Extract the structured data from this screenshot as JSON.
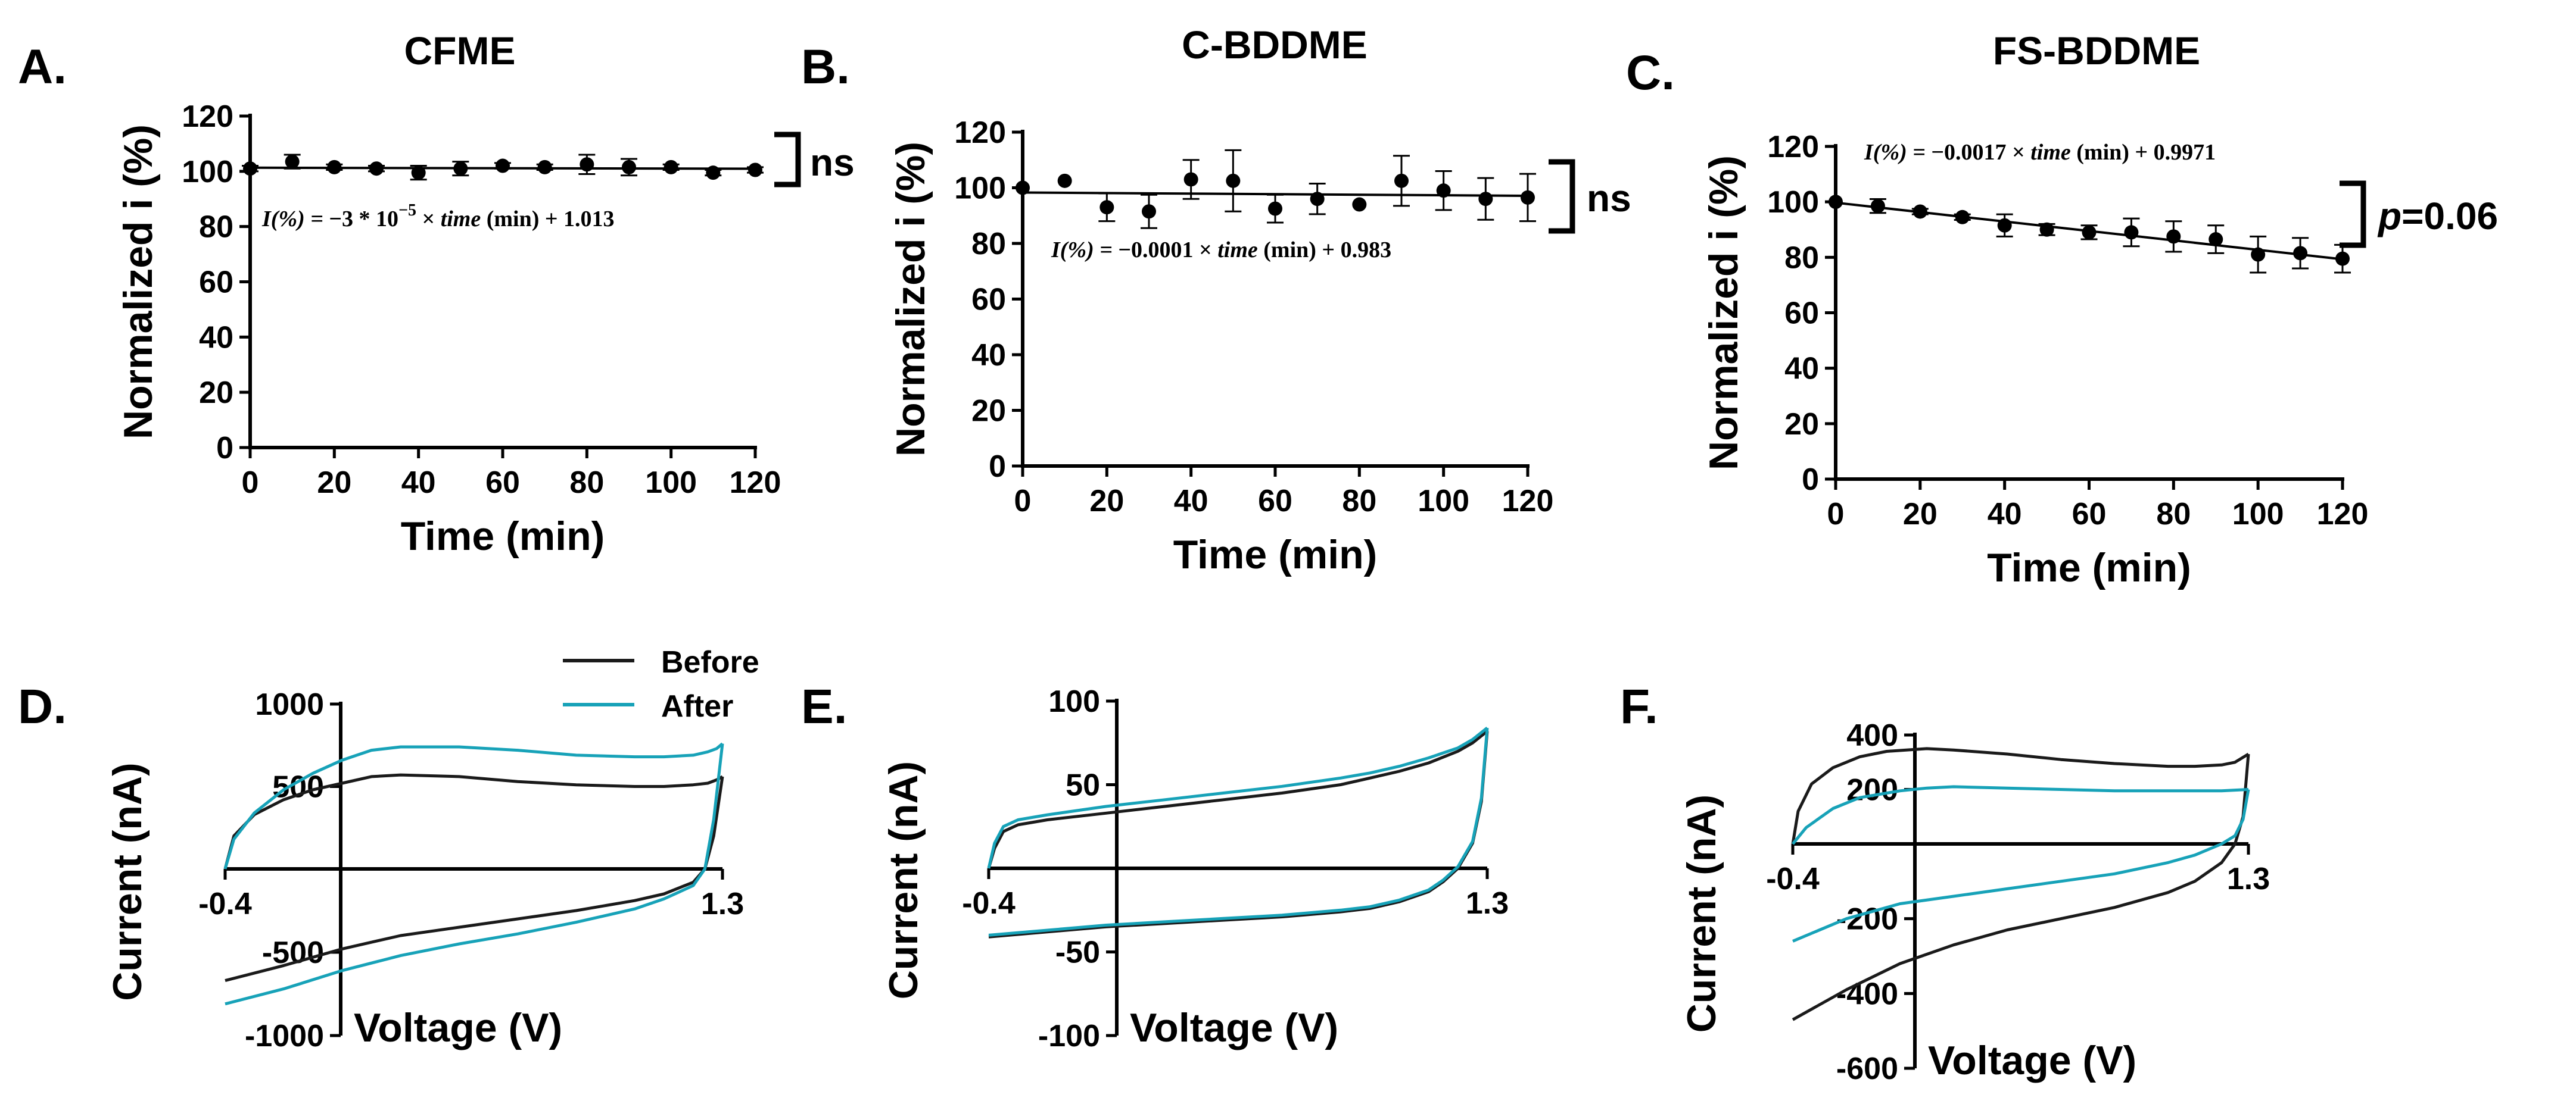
{
  "colors": {
    "before": "#1a1a1a",
    "after": "#17a2b8",
    "axis": "#000000"
  },
  "chart_data": [
    {
      "id": "A",
      "letter": "A.",
      "type": "scatter",
      "title": "CFME",
      "xlabel": "Time (min)",
      "ylabel": "Normalized i (%)",
      "xlim": [
        0,
        120
      ],
      "ylim": [
        0,
        120
      ],
      "xticks": [
        0,
        20,
        40,
        60,
        80,
        100,
        120
      ],
      "yticks": [
        0,
        20,
        40,
        60,
        80,
        100,
        120
      ],
      "x": [
        0,
        10,
        20,
        30,
        40,
        50,
        60,
        70,
        80,
        90,
        100,
        110,
        120
      ],
      "y": [
        101,
        103.5,
        101.5,
        101,
        99.5,
        101,
        102,
        101.5,
        102.5,
        101.5,
        101.5,
        99.5,
        100.5
      ],
      "err": [
        1,
        2.5,
        1,
        1,
        2.5,
        2.5,
        1,
        1,
        3.5,
        3,
        1,
        1,
        1
      ],
      "fit": {
        "intercept": 101.3,
        "slope": -0.003
      },
      "equation": [
        "I(%) = ",
        "−3 * 10",
        "−5",
        " × ",
        "time",
        " (min) + 1.013"
      ],
      "significance": "ns"
    },
    {
      "id": "B",
      "letter": "B.",
      "type": "scatter",
      "title": "C-BDDME",
      "xlabel": "Time (min)",
      "ylabel": "Normalized i (%)",
      "xlim": [
        0,
        120
      ],
      "ylim": [
        0,
        120
      ],
      "xticks": [
        0,
        20,
        40,
        60,
        80,
        100,
        120
      ],
      "yticks": [
        0,
        20,
        40,
        60,
        80,
        100,
        120
      ],
      "x": [
        0,
        10,
        20,
        30,
        40,
        50,
        60,
        70,
        80,
        90,
        100,
        110,
        120
      ],
      "y": [
        100,
        102.5,
        93,
        91.5,
        103,
        102.5,
        92.5,
        96,
        94,
        102.5,
        99,
        96,
        96.5
      ],
      "err": [
        0,
        0,
        5,
        6,
        7,
        11,
        5,
        5.5,
        0,
        9,
        7,
        7.5,
        8.5
      ],
      "fit": {
        "intercept": 98.3,
        "slope": -0.01
      },
      "equation": [
        "I(%) = ",
        "−0.0001",
        "",
        " × ",
        "time",
        " (min) + 0.983"
      ],
      "significance": "ns"
    },
    {
      "id": "C",
      "letter": "C.",
      "type": "scatter",
      "title": "FS-BDDME",
      "xlabel": "Time (min)",
      "ylabel": "Normalized i (%)",
      "xlim": [
        0,
        120
      ],
      "ylim": [
        0,
        120
      ],
      "xticks": [
        0,
        20,
        40,
        60,
        80,
        100,
        120
      ],
      "yticks": [
        0,
        20,
        40,
        60,
        80,
        100,
        120
      ],
      "x": [
        0,
        10,
        20,
        30,
        40,
        50,
        60,
        70,
        80,
        90,
        100,
        110,
        120
      ],
      "y": [
        100,
        98.5,
        96.5,
        94.5,
        91.5,
        90,
        89,
        89,
        87.5,
        86.5,
        81,
        81.5,
        79.5
      ],
      "err": [
        0,
        2.5,
        1,
        1,
        4,
        2,
        2.5,
        5,
        5.5,
        5,
        6.5,
        5.5,
        5
      ],
      "fit": {
        "intercept": 99.7,
        "slope": -0.17
      },
      "equation": [
        "I(%) = ",
        "−0.0017",
        "",
        " × ",
        "time",
        " (min) + 0.9971"
      ],
      "significance": "p=0.06",
      "significance_p": "p",
      "significance_rest": "=0.06"
    },
    {
      "id": "D",
      "letter": "D.",
      "type": "line",
      "xlabel": "Voltage (V)",
      "ylabel": "Current (nA)",
      "xlim": [
        -0.4,
        1.3
      ],
      "ylim": [
        -1000,
        1000
      ],
      "xtick_labels": [
        "-0.4",
        "1.3"
      ],
      "ytick_labels": [
        "1000",
        "500",
        "-500",
        "-1000"
      ],
      "yticks": [
        1000,
        500,
        -500,
        -1000
      ],
      "legend": [
        "Before",
        "After"
      ],
      "series": [
        {
          "name": "Before",
          "anodic": {
            "x": [
              -0.4,
              -0.37,
              -0.3,
              -0.2,
              -0.1,
              0,
              0.1,
              0.2,
              0.4,
              0.6,
              0.8,
              1.0,
              1.1,
              1.2,
              1.25,
              1.28,
              1.3
            ],
            "y": [
              0,
              200,
              330,
              420,
              480,
              520,
              560,
              570,
              560,
              530,
              510,
              500,
              500,
              510,
              520,
              540,
              560
            ]
          },
          "cathodic": {
            "x": [
              1.3,
              1.27,
              1.24,
              1.2,
              1.1,
              1.0,
              0.8,
              0.6,
              0.4,
              0.2,
              0,
              -0.2,
              -0.4
            ],
            "y": [
              560,
              200,
              0,
              -80,
              -150,
              -190,
              -250,
              -300,
              -350,
              -400,
              -480,
              -580,
              -670
            ]
          }
        },
        {
          "name": "After",
          "anodic": {
            "x": [
              -0.4,
              -0.37,
              -0.3,
              -0.2,
              -0.1,
              0,
              0.1,
              0.2,
              0.4,
              0.6,
              0.8,
              1.0,
              1.1,
              1.2,
              1.25,
              1.28,
              1.3
            ],
            "y": [
              0,
              180,
              340,
              480,
              580,
              660,
              720,
              740,
              740,
              720,
              690,
              680,
              680,
              690,
              710,
              730,
              760
            ]
          },
          "cathodic": {
            "x": [
              1.3,
              1.27,
              1.24,
              1.2,
              1.1,
              1.0,
              0.8,
              0.6,
              0.4,
              0.2,
              0,
              -0.2,
              -0.4
            ],
            "y": [
              760,
              300,
              0,
              -100,
              -180,
              -240,
              -320,
              -390,
              -450,
              -520,
              -610,
              -720,
              -810
            ]
          }
        }
      ]
    },
    {
      "id": "E",
      "letter": "E.",
      "type": "line",
      "xlabel": "Voltage (V)",
      "ylabel": "Current (nA)",
      "xlim": [
        -0.4,
        1.3
      ],
      "ylim": [
        -100,
        100
      ],
      "xtick_labels": [
        "-0.4",
        "1.3"
      ],
      "ytick_labels": [
        "100",
        "50",
        "-50",
        "-100"
      ],
      "yticks": [
        100,
        50,
        -50,
        -100
      ],
      "series": [
        {
          "name": "Before",
          "anodic": {
            "x": [
              -0.4,
              -0.38,
              -0.35,
              -0.3,
              -0.2,
              0,
              0.2,
              0.4,
              0.6,
              0.8,
              0.9,
              1.0,
              1.1,
              1.2,
              1.25,
              1.3
            ],
            "y": [
              0,
              12,
              22,
              26,
              29,
              33,
              37,
              41,
              45,
              50,
              54,
              58,
              63,
              70,
              75,
              82
            ]
          },
          "cathodic": {
            "x": [
              1.3,
              1.28,
              1.25,
              1.2,
              1.15,
              1.1,
              1.0,
              0.9,
              0.8,
              0.6,
              0.4,
              0.2,
              0,
              -0.2,
              -0.4
            ],
            "y": [
              82,
              40,
              15,
              0,
              -8,
              -14,
              -20,
              -24,
              -26,
              -29,
              -31,
              -33,
              -35,
              -38,
              -41
            ]
          }
        },
        {
          "name": "After",
          "anodic": {
            "x": [
              -0.4,
              -0.38,
              -0.35,
              -0.3,
              -0.2,
              0,
              0.2,
              0.4,
              0.6,
              0.8,
              0.9,
              1.0,
              1.1,
              1.2,
              1.25,
              1.3
            ],
            "y": [
              0,
              15,
              25,
              29,
              32,
              37,
              41,
              45,
              49,
              54,
              57,
              61,
              66,
              72,
              77,
              84
            ]
          },
          "cathodic": {
            "x": [
              1.3,
              1.28,
              1.25,
              1.2,
              1.15,
              1.1,
              1.0,
              0.9,
              0.8,
              0.6,
              0.4,
              0.2,
              0,
              -0.2,
              -0.4
            ],
            "y": [
              84,
              42,
              16,
              1,
              -7,
              -13,
              -19,
              -23,
              -25,
              -28,
              -30,
              -32,
              -34,
              -37,
              -40
            ]
          }
        }
      ]
    },
    {
      "id": "F",
      "letter": "F.",
      "type": "line",
      "xlabel": "Voltage (V)",
      "ylabel": "Current (nA)",
      "xlim": [
        -0.4,
        1.3
      ],
      "ylim": [
        -600,
        400
      ],
      "xtick_labels": [
        "-0.4",
        "1.3"
      ],
      "ytick_labels": [
        "400",
        "200",
        "-200",
        "-400",
        "-600"
      ],
      "yticks": [
        400,
        200,
        -200,
        -400,
        -600
      ],
      "series": [
        {
          "name": "Before",
          "anodic": {
            "x": [
              -0.4,
              -0.38,
              -0.33,
              -0.25,
              -0.15,
              -0.05,
              0.1,
              0.2,
              0.4,
              0.6,
              0.8,
              1.0,
              1.1,
              1.2,
              1.25,
              1.3
            ],
            "y": [
              0,
              120,
              220,
              280,
              320,
              340,
              350,
              345,
              330,
              310,
              295,
              285,
              285,
              290,
              300,
              330
            ]
          },
          "cathodic": {
            "x": [
              1.3,
              1.28,
              1.25,
              1.2,
              1.1,
              1.0,
              0.8,
              0.6,
              0.4,
              0.2,
              0,
              -0.2,
              -0.4
            ],
            "y": [
              330,
              100,
              0,
              -50,
              -100,
              -130,
              -170,
              -200,
              -230,
              -270,
              -320,
              -390,
              -470
            ]
          }
        },
        {
          "name": "After",
          "anodic": {
            "x": [
              -0.4,
              -0.35,
              -0.25,
              -0.15,
              0,
              0.1,
              0.2,
              0.4,
              0.6,
              0.8,
              1.0,
              1.1,
              1.2,
              1.3
            ],
            "y": [
              0,
              60,
              130,
              170,
              195,
              205,
              210,
              205,
              200,
              195,
              195,
              195,
              195,
              200
            ]
          },
          "cathodic": {
            "x": [
              1.3,
              1.28,
              1.25,
              1.2,
              1.1,
              1.0,
              0.8,
              0.6,
              0.4,
              0.2,
              0,
              -0.2,
              -0.4
            ],
            "y": [
              200,
              90,
              30,
              0,
              -30,
              -50,
              -80,
              -100,
              -120,
              -140,
              -160,
              -200,
              -260
            ]
          }
        }
      ]
    }
  ]
}
